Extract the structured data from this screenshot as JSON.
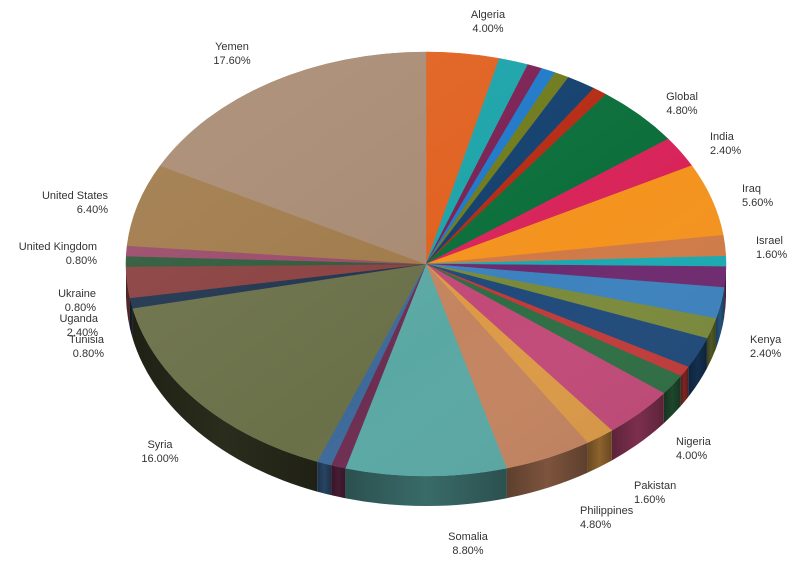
{
  "chart_data": {
    "type": "pie",
    "title": "",
    "slices": [
      {
        "label": "Algeria",
        "value": 4.0,
        "value_label": "4.00%",
        "color": "#e0601e",
        "side": "#9a3f12",
        "show_label": true
      },
      {
        "label": "",
        "value": 1.6,
        "value_label": "",
        "color": "#1aa3a8",
        "side": "#0f6a6e",
        "show_label": false
      },
      {
        "label": "",
        "value": 0.8,
        "value_label": "",
        "color": "#7a1f52",
        "side": "#4d1334",
        "show_label": false
      },
      {
        "label": "",
        "value": 0.8,
        "value_label": "",
        "color": "#1e78c8",
        "side": "#134d80",
        "show_label": false
      },
      {
        "label": "",
        "value": 0.8,
        "value_label": "",
        "color": "#6e7a1a",
        "side": "#474f10",
        "show_label": false
      },
      {
        "label": "",
        "value": 1.6,
        "value_label": "",
        "color": "#123f6e",
        "side": "#0b2845",
        "show_label": false
      },
      {
        "label": "",
        "value": 0.8,
        "value_label": "",
        "color": "#b52a12",
        "side": "#731b0b",
        "show_label": false
      },
      {
        "label": "Global",
        "value": 4.8,
        "value_label": "4.80%",
        "color": "#0a6e3a",
        "side": "#064625",
        "show_label": true
      },
      {
        "label": "India",
        "value": 2.4,
        "value_label": "2.40%",
        "color": "#d8245a",
        "side": "#8a1739",
        "show_label": true
      },
      {
        "label": "Iraq",
        "value": 5.6,
        "value_label": "5.60%",
        "color": "#f4931e",
        "side": "#9e5e12",
        "show_label": true
      },
      {
        "label": "Israel",
        "value": 1.6,
        "value_label": "1.60%",
        "color": "#d07a48",
        "side": "#874e2d",
        "show_label": true
      },
      {
        "label": "",
        "value": 0.8,
        "value_label": "",
        "color": "#1aaab2",
        "side": "#106d72",
        "show_label": false
      },
      {
        "label": "",
        "value": 1.6,
        "value_label": "",
        "color": "#6e2a6e",
        "side": "#461a46",
        "show_label": false
      },
      {
        "label": "",
        "value": 2.4,
        "value_label": "",
        "color": "#3c82be",
        "side": "#26537a",
        "show_label": false
      },
      {
        "label": "",
        "value": 1.6,
        "value_label": "",
        "color": "#7a8a3a",
        "side": "#4e5925",
        "show_label": false
      },
      {
        "label": "Kenya",
        "value": 2.4,
        "value_label": "2.40%",
        "color": "#1f4a7a",
        "side": "#132f4e",
        "show_label": true
      },
      {
        "label": "",
        "value": 0.8,
        "value_label": "",
        "color": "#c23a3a",
        "side": "#7c2525",
        "show_label": false
      },
      {
        "label": "",
        "value": 1.6,
        "value_label": "",
        "color": "#2e6e44",
        "side": "#1d462b",
        "show_label": false
      },
      {
        "label": "Nigeria",
        "value": 4.0,
        "value_label": "4.00%",
        "color": "#c24a78",
        "side": "#7c2f4d",
        "show_label": true
      },
      {
        "label": "Pakistan",
        "value": 1.6,
        "value_label": "1.60%",
        "color": "#dc9a46",
        "side": "#8d622d",
        "show_label": true
      },
      {
        "label": "Philippines",
        "value": 4.8,
        "value_label": "4.80%",
        "color": "#c48460",
        "side": "#7d543d",
        "show_label": true
      },
      {
        "label": "Somalia",
        "value": 8.8,
        "value_label": "8.80%",
        "color": "#5aa8a4",
        "side": "#396b69",
        "show_label": true
      },
      {
        "label": "",
        "value": 0.8,
        "value_label": "",
        "color": "#6e2e52",
        "side": "#461d34",
        "show_label": false
      },
      {
        "label": "",
        "value": 0.8,
        "value_label": "",
        "color": "#3e6a9a",
        "side": "#274463",
        "show_label": false
      },
      {
        "label": "Syria",
        "value": 16.0,
        "value_label": "16.00%",
        "color": "#6a7048",
        "side": "#2a2c1c",
        "show_label": true
      },
      {
        "label": "Tunisia",
        "value": 0.8,
        "value_label": "0.80%",
        "color": "#20344e",
        "side": "#141f2e",
        "show_label": true
      },
      {
        "label": "Uganda",
        "value": 2.4,
        "value_label": "2.40%",
        "color": "#8a4040",
        "side": "#582828",
        "show_label": true
      },
      {
        "label": "Ukraine",
        "value": 0.8,
        "value_label": "0.80%",
        "color": "#2e5a3a",
        "side": "#1d3a25",
        "show_label": true
      },
      {
        "label": "United Kingdom",
        "value": 0.8,
        "value_label": "0.80%",
        "color": "#9a4a6a",
        "side": "#622f44",
        "show_label": true
      },
      {
        "label": "United States",
        "value": 6.4,
        "value_label": "6.40%",
        "color": "#a07a4a",
        "side": "#664e2f",
        "show_label": true
      },
      {
        "label": "Yemen",
        "value": 17.6,
        "value_label": "17.60%",
        "color": "#a88a72",
        "side": "#6b5848",
        "show_label": true
      }
    ]
  }
}
